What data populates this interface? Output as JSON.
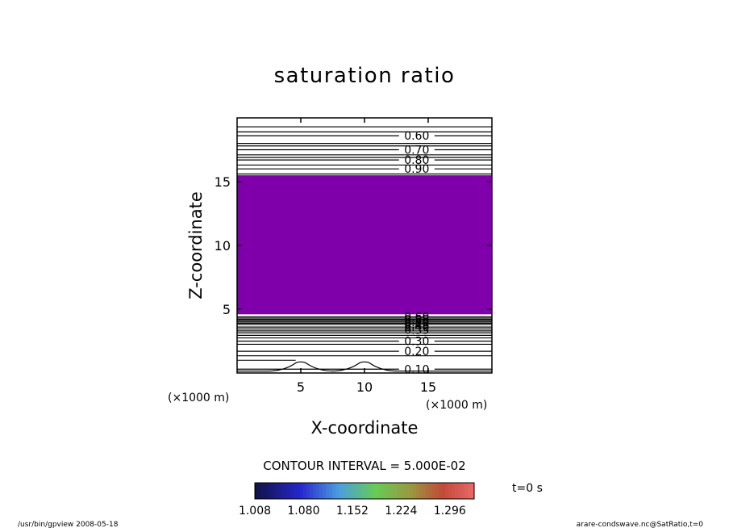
{
  "chart_data": {
    "type": "contour",
    "title": "saturation ratio",
    "xlabel": "X-coordinate",
    "ylabel": "Z-coordinate",
    "x_unit_label": "(×1000 m)",
    "y_unit_label": "(×1000 m)",
    "xlim": [
      0,
      20
    ],
    "ylim": [
      0,
      20
    ],
    "x_ticks": [
      5,
      10,
      15
    ],
    "x_tick_labels": [
      "5",
      "10",
      "15"
    ],
    "y_ticks": [
      5,
      10,
      15
    ],
    "y_tick_labels": [
      "5",
      "10",
      "15"
    ],
    "shaded_region": {
      "z_min": 4.6,
      "z_max": 15.5,
      "color": "#7f00aa"
    },
    "upper_contours": [
      {
        "z": 19.3
      },
      {
        "z": 18.9
      },
      {
        "z": 18.6,
        "label": "0.60"
      },
      {
        "z": 18.0
      },
      {
        "z": 17.8
      },
      {
        "z": 17.5,
        "label": "0.70"
      },
      {
        "z": 17.1
      },
      {
        "z": 16.9
      },
      {
        "z": 16.7,
        "label": "0.80"
      },
      {
        "z": 16.3
      },
      {
        "z": 16.0,
        "label": "0.90"
      },
      {
        "z": 15.6
      }
    ],
    "lower_contours": [
      {
        "z": 4.4
      },
      {
        "z": 4.3
      },
      {
        "z": 4.2
      },
      {
        "z": 4.1
      },
      {
        "z": 4.0
      },
      {
        "z": 3.9
      },
      {
        "z": 3.8
      },
      {
        "z": 3.6
      },
      {
        "z": 3.45
      },
      {
        "z": 3.3
      },
      {
        "z": 3.15
      },
      {
        "z": 2.95
      },
      {
        "z": 2.75
      },
      {
        "z": 2.5,
        "label": "0.30"
      },
      {
        "z": 2.25
      },
      {
        "z": 1.7,
        "label": "0.20"
      },
      {
        "z": 1.35
      },
      {
        "z": 0.3,
        "label": "0.10"
      }
    ],
    "overlapping_labels": [
      "0.60",
      "0.55",
      "0.50",
      "0.45",
      "0.40",
      "0.35"
    ],
    "contour_interval_text": "CONTOUR INTERVAL = 5.000E-02",
    "time_label": "t=0 s",
    "colorbar": {
      "tick_labels": [
        "1.008",
        "1.080",
        "1.152",
        "1.224",
        "1.296"
      ],
      "range": [
        1.008,
        1.332
      ]
    }
  },
  "footer": {
    "left": "/usr/bin/gpview   2008-05-18",
    "right": "arare-condswave.nc@SatRatio,t=0"
  }
}
